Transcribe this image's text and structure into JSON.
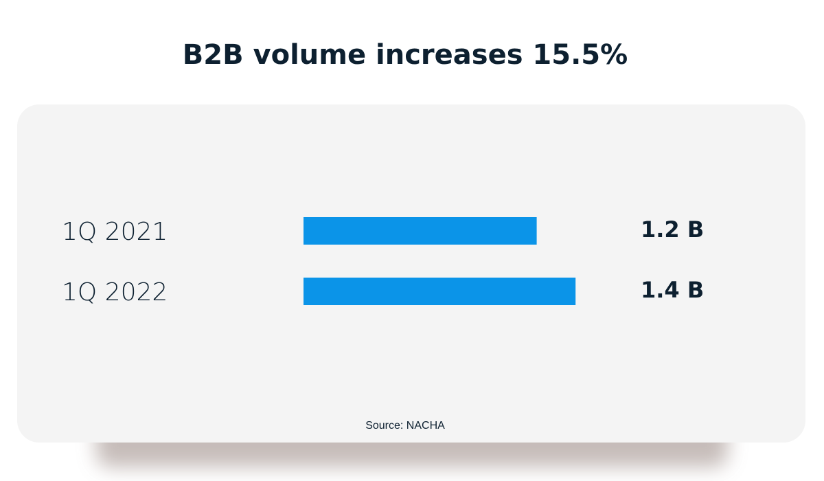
{
  "chart_data": {
    "type": "bar",
    "title": "B2B volume increases 15.5%",
    "categories": [
      "1Q 2021",
      "1Q 2022"
    ],
    "values": [
      1.2,
      1.4
    ],
    "value_labels": [
      "1.2 B",
      "1.4 B"
    ],
    "color": "#0b94e8",
    "source": "Source: NACHA"
  }
}
